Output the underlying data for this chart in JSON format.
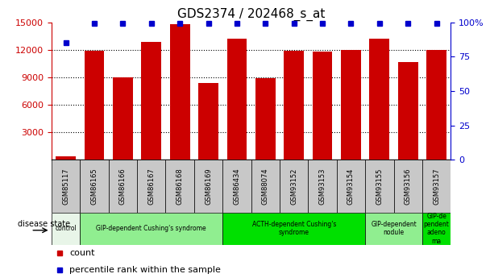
{
  "title": "GDS2374 / 202468_s_at",
  "samples": [
    "GSM85117",
    "GSM86165",
    "GSM86166",
    "GSM86167",
    "GSM86168",
    "GSM86169",
    "GSM86434",
    "GSM88074",
    "GSM93152",
    "GSM93153",
    "GSM93154",
    "GSM93155",
    "GSM93156",
    "GSM93157"
  ],
  "counts": [
    400,
    11900,
    9000,
    12900,
    14800,
    8400,
    13200,
    8900,
    11900,
    11800,
    12000,
    13200,
    10700,
    12000
  ],
  "percentiles": [
    85,
    99,
    99,
    99,
    99,
    99,
    99,
    99,
    99,
    99,
    99,
    99,
    99,
    99
  ],
  "bar_color": "#cc0000",
  "dot_color": "#0000cc",
  "ylim_left": [
    0,
    15000
  ],
  "ylim_right": [
    0,
    100
  ],
  "yticks_left": [
    3000,
    6000,
    9000,
    12000,
    15000
  ],
  "yticks_right": [
    0,
    25,
    50,
    75,
    100
  ],
  "disease_groups": [
    {
      "label": "control",
      "start": 0,
      "end": 1,
      "color": "#e8f5e8"
    },
    {
      "label": "GIP-dependent Cushing's syndrome",
      "start": 1,
      "end": 6,
      "color": "#90ee90"
    },
    {
      "label": "ACTH-dependent Cushing's\nsyndrome",
      "start": 6,
      "end": 11,
      "color": "#00e000"
    },
    {
      "label": "GIP-dependent\nnodule",
      "start": 11,
      "end": 13,
      "color": "#90ee90"
    },
    {
      "label": "GIP-de\npendent\nadeno\nma",
      "start": 13,
      "end": 14,
      "color": "#00e000"
    }
  ],
  "sample_box_color": "#c8c8c8",
  "legend_count_color": "#cc0000",
  "legend_percentile_color": "#0000cc",
  "left_axis_color": "#cc0000",
  "right_axis_color": "#0000cc",
  "grid_color": "#000000",
  "background_color": "#ffffff"
}
